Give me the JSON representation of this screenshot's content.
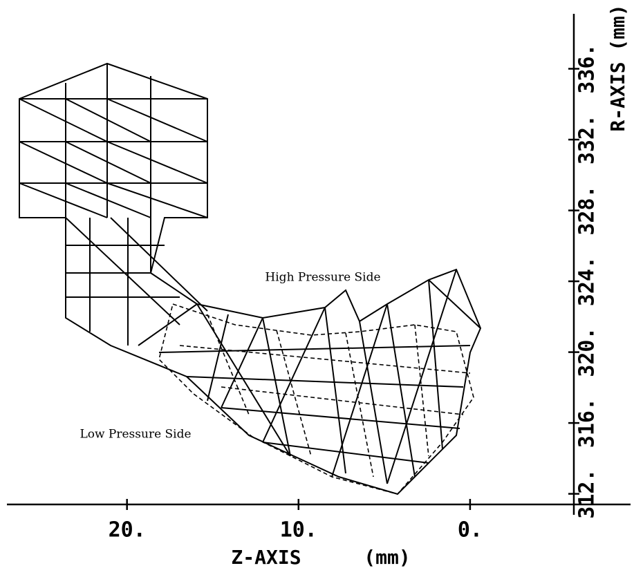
{
  "chart_data": {
    "type": "mesh",
    "annotations": [
      "High Pressure Side",
      "Low Pressure Side"
    ],
    "xlabel": "Z-AXIS",
    "xunit": "(mm)",
    "ylabel": "R-AXIS",
    "yunit": "(mm)",
    "xlim": [
      27,
      -6.05
    ],
    "xticks": [
      {
        "value": 20,
        "label": "20."
      },
      {
        "value": 10,
        "label": "10."
      },
      {
        "value": 0,
        "label": "0."
      }
    ],
    "ylim": [
      311.4,
      338.4
    ],
    "yticks": [
      {
        "value": 312,
        "label": "312."
      },
      {
        "value": 316,
        "label": "316."
      },
      {
        "value": 320,
        "label": "320."
      },
      {
        "value": 324,
        "label": "324."
      },
      {
        "value": 328,
        "label": "328."
      },
      {
        "value": 332,
        "label": "332."
      },
      {
        "value": 336,
        "label": "336."
      }
    ]
  }
}
